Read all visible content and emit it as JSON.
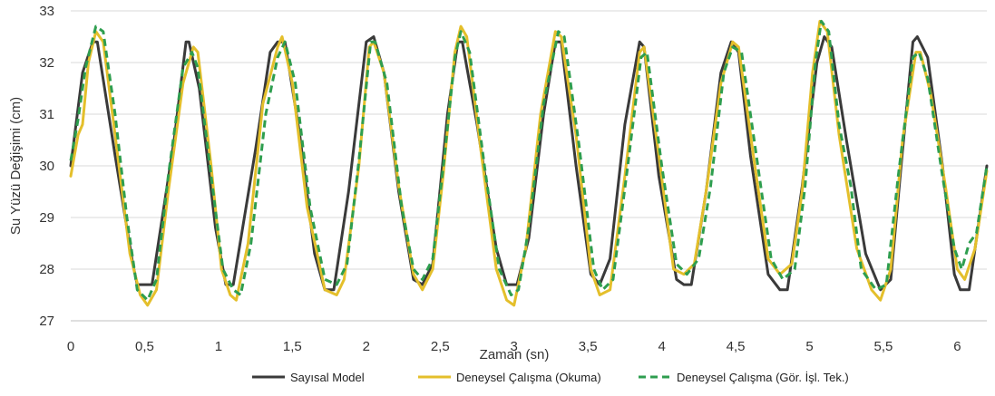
{
  "chart_data": {
    "type": "line",
    "title": "",
    "xlabel": "Zaman (sn)",
    "ylabel": "Su Yüzü Değişimi (cm)",
    "xlim": [
      0,
      6.2
    ],
    "ylim": [
      27,
      33
    ],
    "x_ticks": [
      0,
      0.5,
      1,
      1.5,
      2,
      2.5,
      3,
      3.5,
      4,
      4.5,
      5,
      5.5,
      6
    ],
    "x_tick_labels": [
      "0",
      "0,5",
      "1",
      "1,5",
      "2",
      "2,5",
      "3",
      "3,5",
      "4",
      "4,5",
      "5",
      "5,5",
      "6"
    ],
    "y_ticks": [
      27,
      28,
      29,
      30,
      31,
      32,
      33
    ],
    "y_tick_labels": [
      "27",
      "28",
      "29",
      "30",
      "31",
      "32",
      "33"
    ],
    "grid": "horizontal",
    "legend_position": "bottom",
    "series": [
      {
        "name": "Sayısal Model",
        "color": "#3a3a3a",
        "style": "solid",
        "points": [
          [
            0,
            30
          ],
          [
            0.08,
            31.8
          ],
          [
            0.15,
            32.4
          ],
          [
            0.18,
            32.4
          ],
          [
            0.3,
            30.2
          ],
          [
            0.42,
            28.1
          ],
          [
            0.45,
            27.7
          ],
          [
            0.5,
            27.7
          ],
          [
            0.55,
            27.7
          ],
          [
            0.7,
            30.5
          ],
          [
            0.78,
            32.4
          ],
          [
            0.8,
            32.4
          ],
          [
            0.87,
            31.5
          ],
          [
            0.98,
            28.8
          ],
          [
            1.05,
            27.7
          ],
          [
            1.1,
            27.7
          ],
          [
            1.25,
            30.3
          ],
          [
            1.35,
            32.2
          ],
          [
            1.4,
            32.4
          ],
          [
            1.45,
            32.4
          ],
          [
            1.55,
            30.6
          ],
          [
            1.65,
            28.3
          ],
          [
            1.72,
            27.6
          ],
          [
            1.78,
            27.6
          ],
          [
            1.88,
            29.5
          ],
          [
            2.0,
            32.4
          ],
          [
            2.05,
            32.5
          ],
          [
            2.12,
            31.8
          ],
          [
            2.22,
            29.5
          ],
          [
            2.32,
            27.8
          ],
          [
            2.38,
            27.7
          ],
          [
            2.45,
            28.1
          ],
          [
            2.55,
            31.0
          ],
          [
            2.62,
            32.4
          ],
          [
            2.65,
            32.4
          ],
          [
            2.75,
            30.8
          ],
          [
            2.88,
            28.4
          ],
          [
            2.95,
            27.7
          ],
          [
            3.02,
            27.7
          ],
          [
            3.1,
            28.6
          ],
          [
            3.2,
            31.0
          ],
          [
            3.28,
            32.4
          ],
          [
            3.32,
            32.4
          ],
          [
            3.42,
            30.0
          ],
          [
            3.52,
            27.9
          ],
          [
            3.58,
            27.7
          ],
          [
            3.65,
            28.2
          ],
          [
            3.75,
            30.8
          ],
          [
            3.85,
            32.4
          ],
          [
            3.88,
            32.3
          ],
          [
            3.98,
            29.8
          ],
          [
            4.1,
            27.8
          ],
          [
            4.15,
            27.7
          ],
          [
            4.2,
            27.7
          ],
          [
            4.3,
            29.5
          ],
          [
            4.4,
            31.8
          ],
          [
            4.47,
            32.4
          ],
          [
            4.52,
            32.2
          ],
          [
            4.6,
            30.2
          ],
          [
            4.72,
            27.9
          ],
          [
            4.8,
            27.6
          ],
          [
            4.85,
            27.6
          ],
          [
            4.95,
            29.6
          ],
          [
            5.05,
            32.0
          ],
          [
            5.1,
            32.5
          ],
          [
            5.15,
            32.3
          ],
          [
            5.25,
            30.5
          ],
          [
            5.38,
            28.3
          ],
          [
            5.48,
            27.6
          ],
          [
            5.55,
            27.8
          ],
          [
            5.62,
            30.0
          ],
          [
            5.7,
            32.4
          ],
          [
            5.73,
            32.5
          ],
          [
            5.8,
            32.1
          ],
          [
            5.9,
            30.0
          ],
          [
            5.98,
            27.9
          ],
          [
            6.02,
            27.6
          ],
          [
            6.08,
            27.6
          ],
          [
            6.15,
            29.0
          ],
          [
            6.2,
            30.0
          ]
        ]
      },
      {
        "name": "Deneysel Çalışma (Okuma)",
        "color": "#e4bf2b",
        "style": "solid",
        "points": [
          [
            0,
            29.8
          ],
          [
            0.05,
            30.6
          ],
          [
            0.08,
            30.8
          ],
          [
            0.12,
            32.0
          ],
          [
            0.17,
            32.6
          ],
          [
            0.22,
            32.4
          ],
          [
            0.3,
            30.6
          ],
          [
            0.4,
            28.3
          ],
          [
            0.47,
            27.5
          ],
          [
            0.52,
            27.3
          ],
          [
            0.58,
            27.6
          ],
          [
            0.66,
            29.5
          ],
          [
            0.76,
            31.6
          ],
          [
            0.83,
            32.3
          ],
          [
            0.86,
            32.2
          ],
          [
            0.95,
            30.0
          ],
          [
            1.02,
            28.0
          ],
          [
            1.08,
            27.5
          ],
          [
            1.12,
            27.4
          ],
          [
            1.2,
            28.5
          ],
          [
            1.3,
            31.2
          ],
          [
            1.4,
            32.3
          ],
          [
            1.43,
            32.5
          ],
          [
            1.5,
            31.6
          ],
          [
            1.6,
            29.2
          ],
          [
            1.72,
            27.6
          ],
          [
            1.8,
            27.5
          ],
          [
            1.85,
            27.8
          ],
          [
            1.95,
            30.0
          ],
          [
            2.02,
            32.3
          ],
          [
            2.05,
            32.4
          ],
          [
            2.12,
            31.8
          ],
          [
            2.22,
            29.6
          ],
          [
            2.32,
            27.9
          ],
          [
            2.38,
            27.6
          ],
          [
            2.45,
            28.0
          ],
          [
            2.52,
            29.8
          ],
          [
            2.6,
            32.2
          ],
          [
            2.64,
            32.7
          ],
          [
            2.68,
            32.5
          ],
          [
            2.78,
            30.2
          ],
          [
            2.88,
            28.0
          ],
          [
            2.95,
            27.4
          ],
          [
            3.0,
            27.3
          ],
          [
            3.08,
            28.4
          ],
          [
            3.18,
            31.0
          ],
          [
            3.28,
            32.6
          ],
          [
            3.32,
            32.5
          ],
          [
            3.42,
            30.6
          ],
          [
            3.52,
            28.0
          ],
          [
            3.58,
            27.5
          ],
          [
            3.65,
            27.6
          ],
          [
            3.75,
            29.8
          ],
          [
            3.85,
            32.2
          ],
          [
            3.88,
            32.3
          ],
          [
            3.98,
            30.2
          ],
          [
            4.08,
            28.0
          ],
          [
            4.15,
            27.9
          ],
          [
            4.22,
            28.1
          ],
          [
            4.3,
            29.5
          ],
          [
            4.4,
            31.6
          ],
          [
            4.48,
            32.4
          ],
          [
            4.52,
            32.3
          ],
          [
            4.62,
            30.2
          ],
          [
            4.72,
            28.2
          ],
          [
            4.8,
            27.9
          ],
          [
            4.88,
            28.1
          ],
          [
            4.95,
            29.5
          ],
          [
            5.02,
            31.8
          ],
          [
            5.07,
            32.8
          ],
          [
            5.12,
            32.6
          ],
          [
            5.2,
            30.6
          ],
          [
            5.32,
            28.4
          ],
          [
            5.42,
            27.6
          ],
          [
            5.48,
            27.4
          ],
          [
            5.55,
            28.0
          ],
          [
            5.63,
            30.5
          ],
          [
            5.72,
            32.2
          ],
          [
            5.75,
            32.2
          ],
          [
            5.82,
            31.4
          ],
          [
            5.92,
            29.6
          ],
          [
            6.0,
            28.0
          ],
          [
            6.05,
            27.8
          ],
          [
            6.12,
            28.4
          ],
          [
            6.2,
            29.9
          ]
        ]
      },
      {
        "name": "Deneysel Çalışma (Gör. İşl. Tek.)",
        "color": "#2e9e4f",
        "style": "dashed",
        "points": [
          [
            0,
            30.1
          ],
          [
            0.05,
            30.9
          ],
          [
            0.1,
            31.9
          ],
          [
            0.17,
            32.7
          ],
          [
            0.22,
            32.6
          ],
          [
            0.3,
            31.0
          ],
          [
            0.38,
            29.0
          ],
          [
            0.45,
            27.6
          ],
          [
            0.52,
            27.4
          ],
          [
            0.58,
            27.8
          ],
          [
            0.66,
            29.8
          ],
          [
            0.76,
            31.9
          ],
          [
            0.82,
            32.2
          ],
          [
            0.86,
            31.9
          ],
          [
            0.95,
            29.8
          ],
          [
            1.03,
            28.0
          ],
          [
            1.1,
            27.6
          ],
          [
            1.15,
            27.5
          ],
          [
            1.22,
            28.5
          ],
          [
            1.32,
            31.0
          ],
          [
            1.4,
            32.1
          ],
          [
            1.45,
            32.4
          ],
          [
            1.52,
            31.6
          ],
          [
            1.62,
            29.2
          ],
          [
            1.72,
            27.8
          ],
          [
            1.8,
            27.7
          ],
          [
            1.87,
            28.1
          ],
          [
            1.95,
            30.1
          ],
          [
            2.03,
            32.4
          ],
          [
            2.06,
            32.4
          ],
          [
            2.14,
            31.6
          ],
          [
            2.24,
            29.2
          ],
          [
            2.32,
            28.0
          ],
          [
            2.38,
            27.8
          ],
          [
            2.45,
            28.2
          ],
          [
            2.53,
            30.2
          ],
          [
            2.6,
            32.1
          ],
          [
            2.64,
            32.6
          ],
          [
            2.7,
            32.2
          ],
          [
            2.8,
            30.0
          ],
          [
            2.9,
            28.0
          ],
          [
            2.98,
            27.5
          ],
          [
            3.03,
            27.6
          ],
          [
            3.1,
            28.8
          ],
          [
            3.2,
            31.2
          ],
          [
            3.3,
            32.6
          ],
          [
            3.34,
            32.5
          ],
          [
            3.44,
            30.4
          ],
          [
            3.54,
            28.0
          ],
          [
            3.6,
            27.6
          ],
          [
            3.67,
            27.8
          ],
          [
            3.77,
            30.0
          ],
          [
            3.86,
            32.1
          ],
          [
            3.9,
            32.2
          ],
          [
            4.0,
            30.0
          ],
          [
            4.1,
            28.1
          ],
          [
            4.17,
            27.9
          ],
          [
            4.25,
            28.2
          ],
          [
            4.33,
            29.6
          ],
          [
            4.42,
            31.8
          ],
          [
            4.48,
            32.3
          ],
          [
            4.54,
            32.2
          ],
          [
            4.64,
            30.2
          ],
          [
            4.74,
            28.2
          ],
          [
            4.82,
            27.8
          ],
          [
            4.9,
            28.0
          ],
          [
            4.97,
            29.6
          ],
          [
            5.04,
            32.0
          ],
          [
            5.08,
            32.8
          ],
          [
            5.13,
            32.6
          ],
          [
            5.2,
            30.8
          ],
          [
            5.28,
            29.6
          ],
          [
            5.35,
            28.0
          ],
          [
            5.45,
            27.6
          ],
          [
            5.52,
            27.7
          ],
          [
            5.6,
            29.8
          ],
          [
            5.7,
            32.1
          ],
          [
            5.74,
            32.2
          ],
          [
            5.8,
            31.7
          ],
          [
            5.9,
            29.8
          ],
          [
            5.98,
            28.4
          ],
          [
            6.03,
            28.0
          ],
          [
            6.08,
            28.5
          ],
          [
            6.13,
            28.7
          ],
          [
            6.2,
            30.0
          ]
        ]
      }
    ]
  }
}
